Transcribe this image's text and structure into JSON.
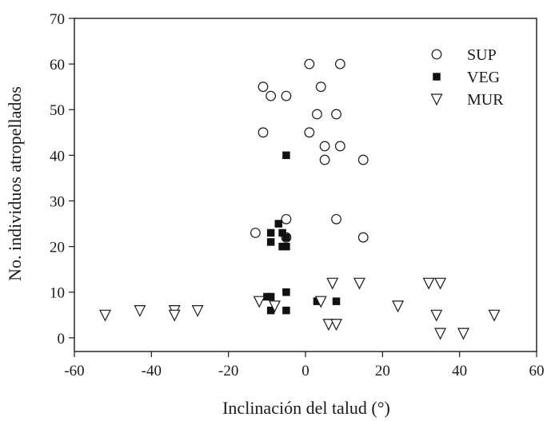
{
  "chart_data": {
    "type": "scatter",
    "title": "",
    "xlabel": "Inclinación del talud (°)",
    "ylabel": "No. individuos atropellados",
    "xlim": [
      -60,
      60
    ],
    "ylim": [
      -3,
      70
    ],
    "xticks": [
      -60,
      -40,
      -20,
      0,
      20,
      40,
      60
    ],
    "yticks": [
      0,
      10,
      20,
      30,
      40,
      50,
      60,
      70
    ],
    "xtick_labels": [
      "-60",
      "-40",
      "-20",
      "0",
      "20",
      "40",
      "60"
    ],
    "ytick_labels": [
      "0",
      "10",
      "20",
      "30",
      "40",
      "50",
      "60",
      "70"
    ],
    "grid": false,
    "legend_position": "top-right",
    "series": [
      {
        "name": "SUP",
        "marker": "circle-open",
        "x": [
          1,
          9,
          -11,
          4,
          -9,
          -5,
          3,
          8,
          -11,
          1,
          5,
          9,
          5,
          15,
          -5,
          8,
          -13,
          -5,
          15
        ],
        "y": [
          60,
          60,
          55,
          55,
          53,
          53,
          49,
          49,
          45,
          45,
          42,
          42,
          39,
          39,
          26,
          26,
          23,
          22,
          22
        ]
      },
      {
        "name": "VEG",
        "marker": "square-filled",
        "x": [
          -5,
          -7,
          -9,
          -6,
          -5,
          -9,
          -6,
          -5,
          -10,
          -9,
          -5,
          -9,
          -5,
          3,
          8
        ],
        "y": [
          40,
          25,
          23,
          23,
          22,
          21,
          20,
          20,
          9,
          9,
          10,
          6,
          6,
          8,
          8
        ],
        "color": "#111111"
      },
      {
        "name": "MUR",
        "marker": "triangle-down-open",
        "x": [
          -52,
          -43,
          -34,
          -34,
          -28,
          -12,
          -8,
          4,
          7,
          14,
          32,
          35,
          24,
          34,
          49,
          6,
          8,
          35,
          41
        ],
        "y": [
          5,
          6,
          6,
          5,
          6,
          8,
          7,
          8,
          12,
          12,
          12,
          12,
          7,
          5,
          5,
          3,
          3,
          1,
          1
        ]
      }
    ]
  }
}
